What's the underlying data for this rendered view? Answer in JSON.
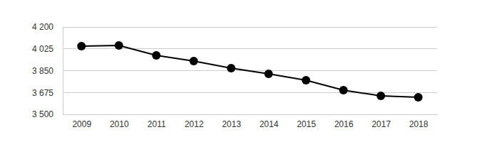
{
  "chart_data": {
    "type": "line",
    "categories": [
      "2009",
      "2010",
      "2011",
      "2012",
      "2013",
      "2014",
      "2015",
      "2016",
      "2017",
      "2018"
    ],
    "values": [
      4046,
      4052,
      3972,
      3927,
      3870,
      3824,
      3773,
      3693,
      3648,
      3636
    ],
    "color": "#000000",
    "marker": "circle",
    "grid": true,
    "ylim": [
      3500,
      4200
    ],
    "yticks": [
      {
        "value": 3500,
        "label": "3 500"
      },
      {
        "value": 3675,
        "label": "3 675"
      },
      {
        "value": 3850,
        "label": "3 850"
      },
      {
        "value": 4025,
        "label": "4 025"
      },
      {
        "value": 4200,
        "label": "4 200"
      }
    ]
  }
}
